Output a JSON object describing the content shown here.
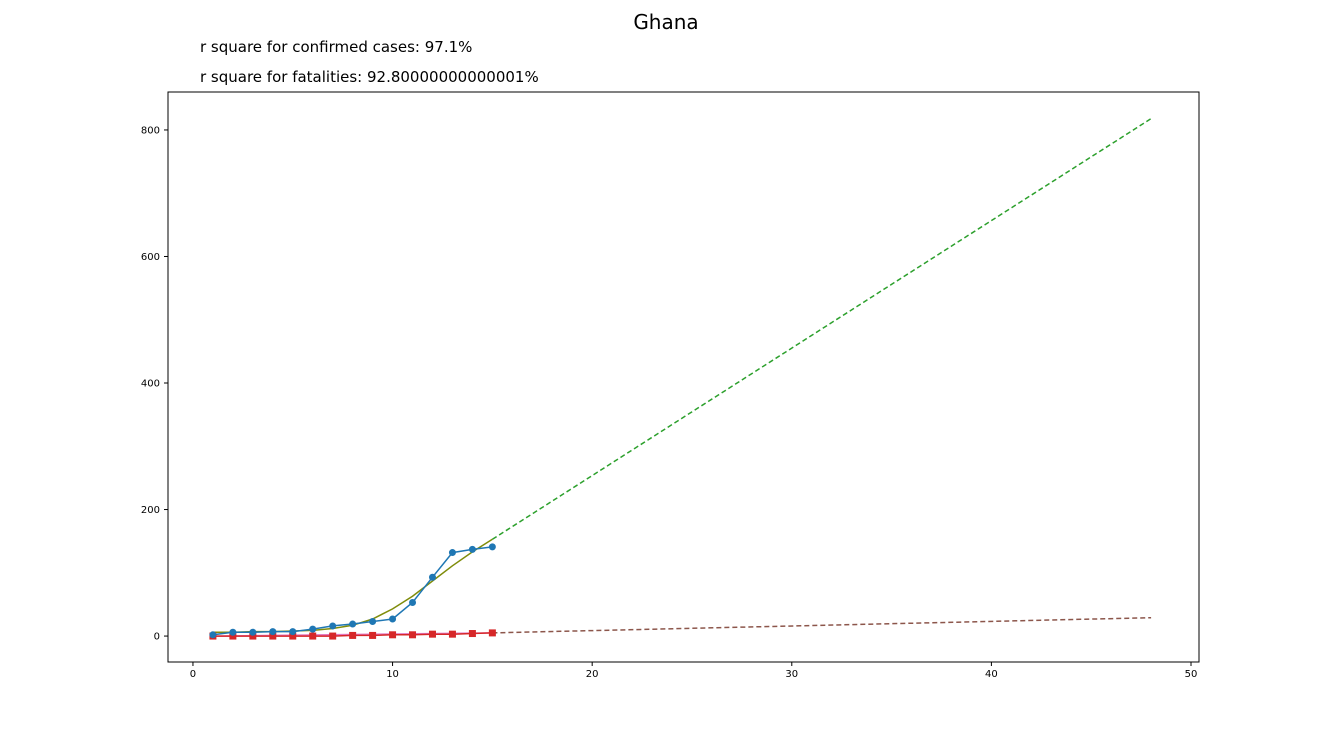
{
  "chart_data": {
    "type": "line",
    "title": "Ghana",
    "annotations": [
      "r square for confirmed cases: 97.1%",
      "r square for fatalities: 92.80000000000001%"
    ],
    "xlim": [
      -1.25,
      50.4
    ],
    "ylim": [
      -41,
      860
    ],
    "xticks": [
      0,
      10,
      20,
      30,
      40,
      50
    ],
    "yticks": [
      0,
      200,
      400,
      600,
      800
    ],
    "grid": false,
    "series": [
      {
        "kind": "observed-confirmed",
        "color": "#1f77b4",
        "marker": "circle",
        "style": "solid",
        "x": [
          1,
          2,
          3,
          4,
          5,
          6,
          7,
          8,
          9,
          10,
          11,
          12,
          13,
          14,
          15
        ],
        "y": [
          2,
          6,
          6,
          7,
          7,
          11,
          16,
          19,
          23,
          27,
          53,
          93,
          132,
          137,
          141
        ]
      },
      {
        "kind": "fit-confirmed",
        "color": "#7f8c0a",
        "style": "solid",
        "x": [
          1,
          2,
          3,
          4,
          5,
          6,
          7,
          8,
          9,
          10,
          11,
          12,
          13,
          14,
          15
        ],
        "y": [
          6,
          6,
          7,
          7,
          8,
          9,
          12,
          17,
          27,
          43,
          63,
          87,
          111,
          133,
          153
        ]
      },
      {
        "kind": "projection-confirmed",
        "color": "#2ca02c",
        "style": "dashed",
        "x": [
          15,
          48
        ],
        "y": [
          153,
          818
        ]
      },
      {
        "kind": "observed-fatalities",
        "color": "#d62728",
        "marker": "square",
        "style": "solid",
        "x": [
          1,
          2,
          3,
          4,
          5,
          6,
          7,
          8,
          9,
          10,
          11,
          12,
          13,
          14,
          15
        ],
        "y": [
          0,
          0,
          0,
          0,
          0,
          0,
          0,
          1,
          1,
          2,
          2,
          3,
          3,
          4,
          5
        ]
      },
      {
        "kind": "fit-fatalities",
        "color": "#e377c2",
        "style": "solid",
        "x": [
          1,
          15
        ],
        "y": [
          0,
          5
        ]
      },
      {
        "kind": "projection-fatalities",
        "color": "#8c564b",
        "style": "dashed",
        "x": [
          15,
          48
        ],
        "y": [
          5,
          29
        ]
      }
    ]
  }
}
